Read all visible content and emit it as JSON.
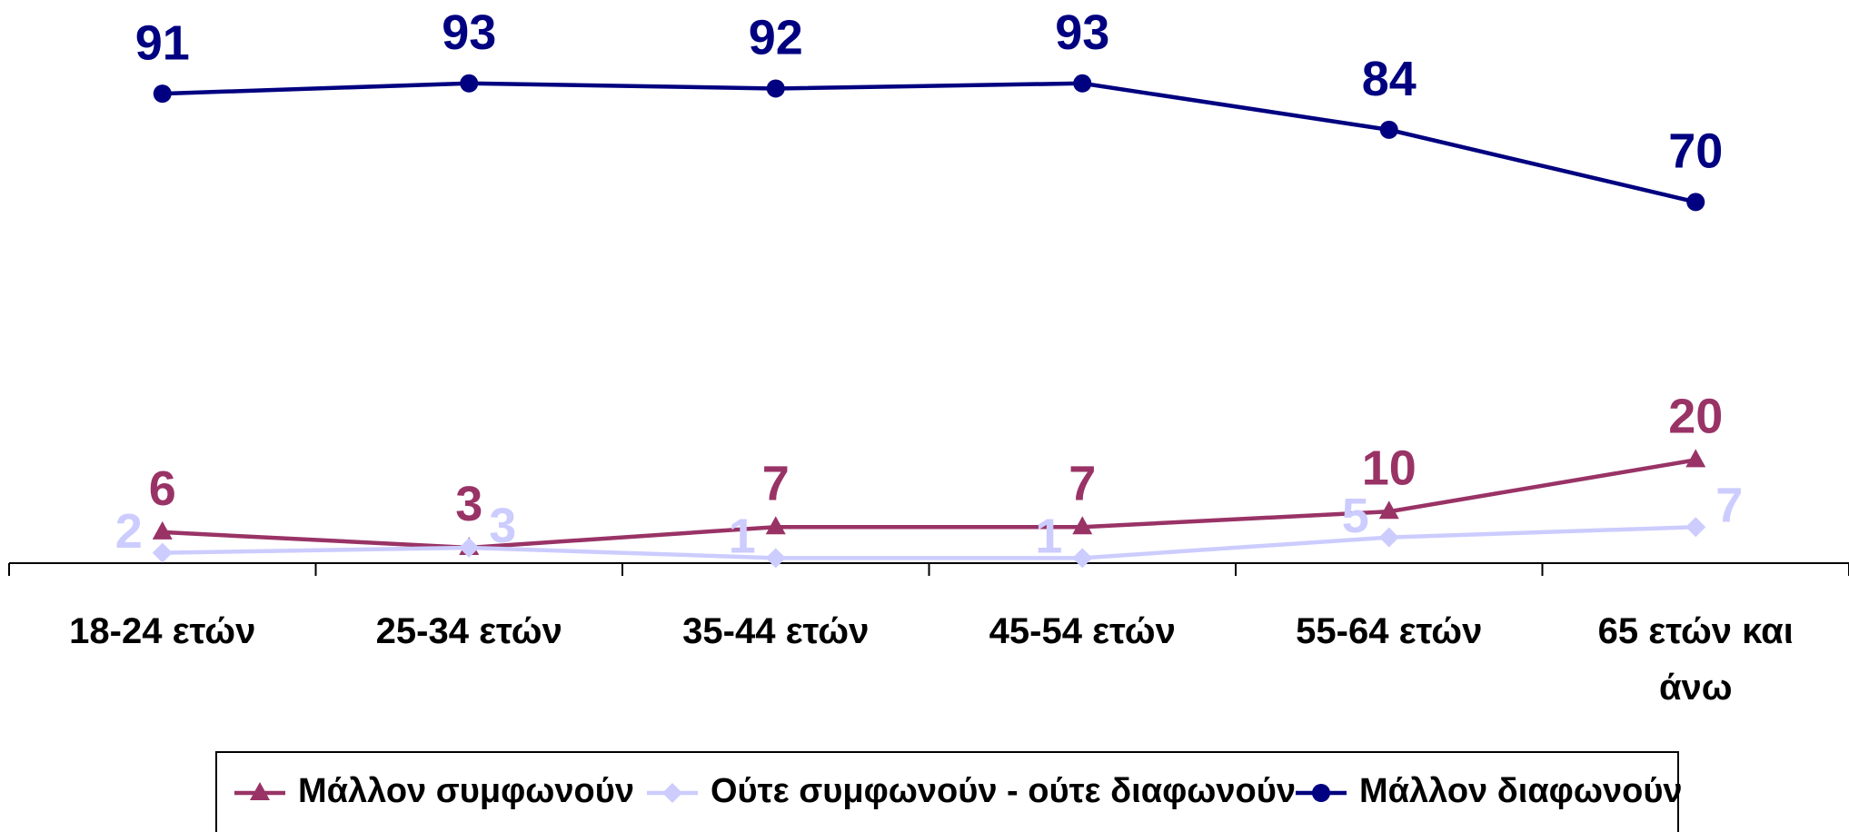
{
  "chart_data": {
    "type": "line",
    "categories": [
      "18-24 ετών",
      "25-34 ετών",
      "35-44 ετών",
      "45-54 ετών",
      "55-64 ετών",
      "65 ετών και άνω"
    ],
    "series": [
      {
        "name": "Μάλλον συμφωνούν",
        "color": "#993366",
        "marker": "triangle",
        "values": [
          6,
          3,
          7,
          7,
          10,
          20
        ]
      },
      {
        "name": "Ούτε συμφωνούν - ούτε διαφωνούν",
        "color": "#ccccff",
        "marker": "diamond",
        "values": [
          2,
          3,
          1,
          1,
          5,
          7
        ]
      },
      {
        "name": "Μάλλον διαφωνούν",
        "color": "#000080",
        "marker": "circle",
        "values": [
          91,
          93,
          92,
          93,
          84,
          70
        ]
      }
    ],
    "ylim": [
      0,
      100
    ],
    "legend": "bottom"
  }
}
